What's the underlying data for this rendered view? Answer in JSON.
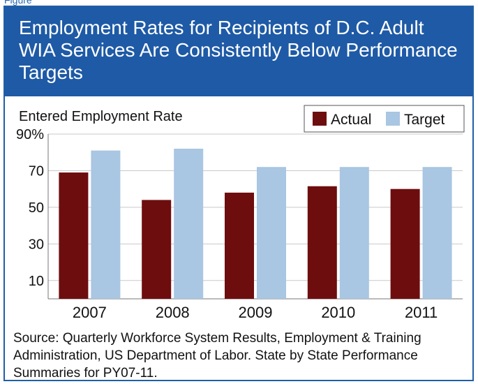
{
  "figure": {
    "label": "Figure",
    "title": "Employment Rates for Recipients of D.C. Adult WIA Services Are Consistently Below Performance Targets",
    "source": "Source: Quarterly Workforce System Results, Employment & Training Administration, US Department of Labor.  State by State Performance Summaries for PY07-11."
  },
  "colors": {
    "header_bg": "#1e5aa6",
    "actual": "#6e0d0e",
    "target": "#a9c6e2",
    "grid": "#c9c9c9"
  },
  "chart_data": {
    "type": "bar",
    "ylabel": "Entered Employment Rate",
    "categories": [
      "2007",
      "2008",
      "2009",
      "2010",
      "2011"
    ],
    "series": [
      {
        "name": "Actual",
        "values": [
          69,
          54,
          58,
          61.5,
          60
        ]
      },
      {
        "name": "Target",
        "values": [
          81,
          82,
          72,
          72,
          72
        ]
      }
    ],
    "ylim": [
      0,
      90
    ],
    "yticks": [
      10,
      30,
      50,
      70,
      90
    ],
    "ytick_labels": [
      "10",
      "30",
      "50",
      "70",
      "90%"
    ],
    "grid": true,
    "legend_position": "top-right"
  }
}
